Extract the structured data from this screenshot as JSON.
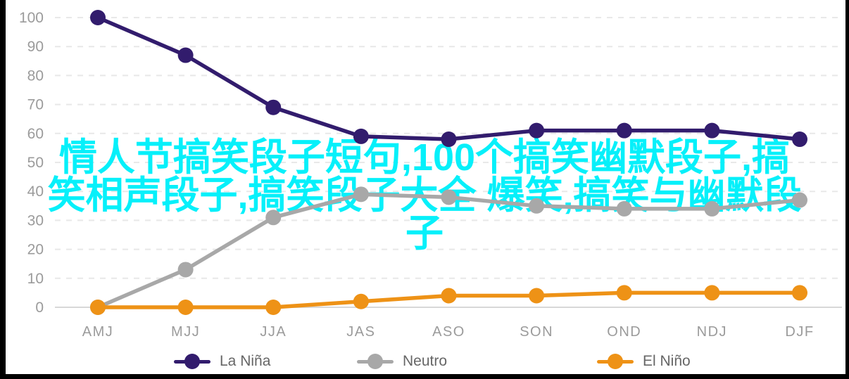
{
  "chart_data": {
    "type": "line",
    "title": "",
    "xlabel": "",
    "ylabel": "",
    "categories": [
      "AMJ",
      "MJJ",
      "JJA",
      "JAS",
      "ASO",
      "SON",
      "OND",
      "NDJ",
      "DJF"
    ],
    "series": [
      {
        "name": "La Niña",
        "color": "#321c6d",
        "values": [
          100,
          87,
          69,
          59,
          58,
          61,
          61,
          61,
          58
        ]
      },
      {
        "name": "Neutro",
        "color": "#a8a8a8",
        "values": [
          0,
          13,
          31,
          39,
          38,
          35,
          34,
          34,
          37
        ]
      },
      {
        "name": "El Niño",
        "color": "#ee9216",
        "values": [
          0,
          0,
          0,
          2,
          4,
          4,
          5,
          5,
          5
        ]
      }
    ],
    "ylim": [
      0,
      100
    ],
    "yticks": [
      0,
      10,
      20,
      30,
      40,
      50,
      60,
      70,
      80,
      90,
      100
    ],
    "grid": "horizontal-dashed",
    "baseline_solid": true,
    "legend_position": "bottom",
    "axis_label_color": "#9b9b9b",
    "grid_color": "#e8e8e8",
    "baseline_color": "#d8d8d8"
  },
  "legend": {
    "items": [
      {
        "label": "La Niña",
        "color": "#321c6d"
      },
      {
        "label": "Neutro",
        "color": "#a8a8a8"
      },
      {
        "label": "El Niño",
        "color": "#ee9216"
      }
    ]
  },
  "watermark": {
    "color": "#06f0fa",
    "lines": [
      "情人节搞笑段子短句,100个搞笑幽默段子,搞",
      "笑相声段子,搞笑段子大全 爆笑,搞笑与幽默段",
      "子"
    ]
  }
}
